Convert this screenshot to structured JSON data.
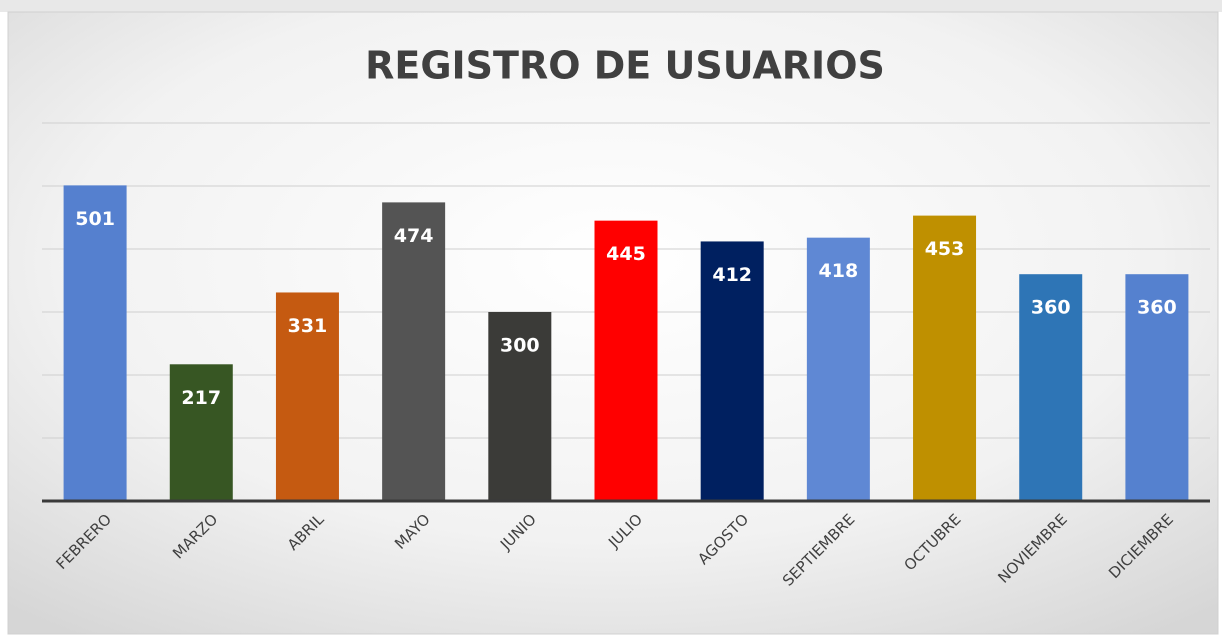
{
  "chart_data": {
    "type": "bar",
    "title": "REGISTRO DE USUARIOS",
    "categories": [
      "FEBRERO",
      "MARZO",
      "ABRIL",
      "MAYO",
      "JUNIO",
      "JULIO",
      "AGOSTO",
      "SEPTIEMBRE",
      "OCTUBRE",
      "NOVIEMBRE",
      "DICIEMBRE"
    ],
    "values": [
      501,
      217,
      331,
      474,
      300,
      445,
      412,
      418,
      453,
      360,
      360
    ],
    "colors": [
      "#5580cf",
      "#375623",
      "#c55a11",
      "#545454",
      "#3b3b38",
      "#ff0000",
      "#002060",
      "#5f88d4",
      "#bf9000",
      "#2e75b6",
      "#5581cf"
    ],
    "ylim": [
      0,
      600
    ],
    "yticks": [
      0,
      100,
      200,
      300,
      400,
      500,
      600
    ],
    "grid": true
  }
}
